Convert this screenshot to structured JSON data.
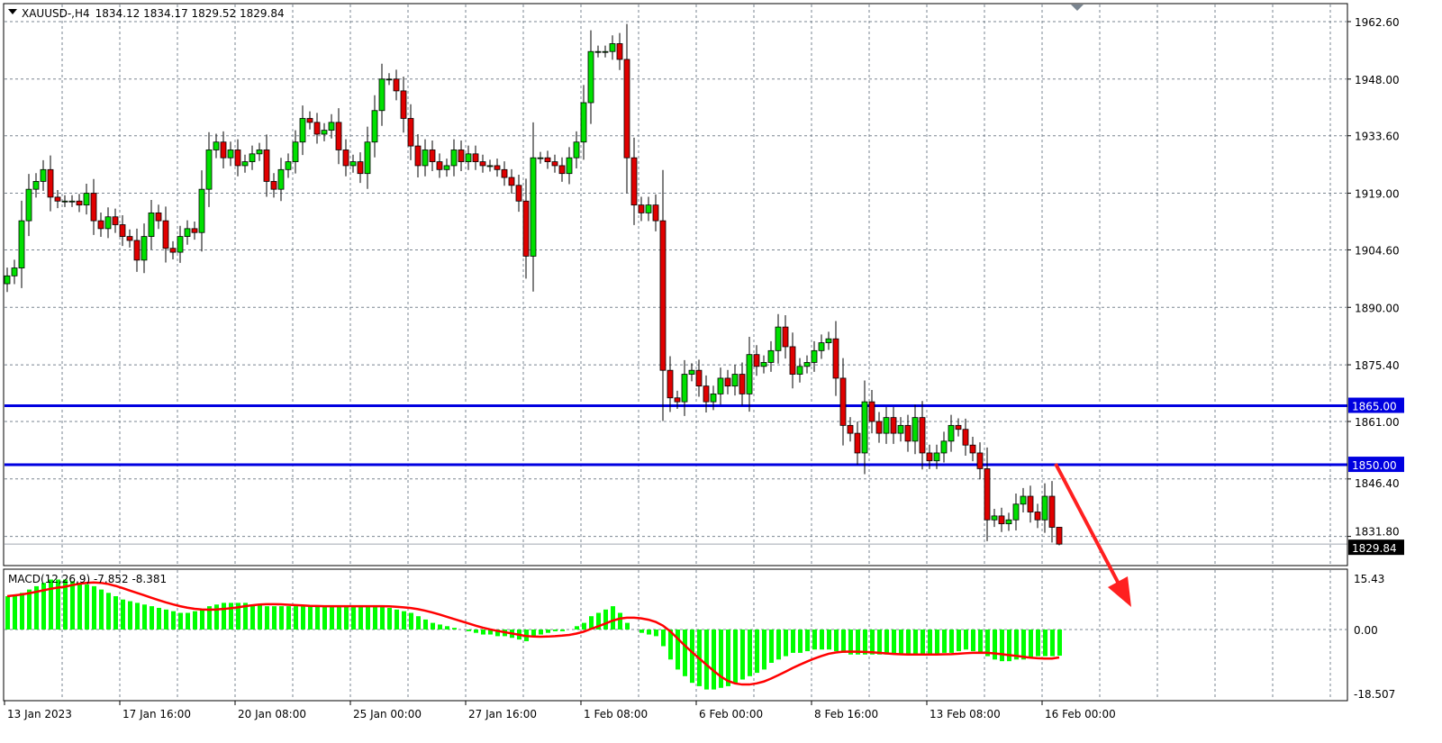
{
  "header": {
    "symbol": "XAUUSD-,H4",
    "ohlc_text": "1834.12 1834.17 1829.52 1829.84"
  },
  "colors": {
    "bull": "#00e000",
    "bear": "#e00000",
    "level_line": "#0000e0",
    "macd_hist": "#00ff00",
    "signal": "#ff0000",
    "grid": "#7a8590",
    "arrow": "#ff2020"
  },
  "chart_data": [
    {
      "type": "candlestick",
      "symbol": "XAUUSD-",
      "timeframe": "H4",
      "last_bar": {
        "open": 1834.12,
        "high": 1834.17,
        "low": 1829.52,
        "close": 1829.84
      },
      "close": [
        1898,
        1900,
        1912,
        1920,
        1922,
        1925,
        1918,
        1917,
        1917,
        1917,
        1916,
        1919,
        1912,
        1910,
        1913,
        1911,
        1908,
        1907,
        1902,
        1908,
        1914,
        1912,
        1905,
        1904,
        1908,
        1910,
        1909,
        1920,
        1930,
        1932,
        1928,
        1930,
        1926,
        1927,
        1929,
        1930,
        1922,
        1920,
        1925,
        1927,
        1932,
        1938,
        1937,
        1934,
        1935,
        1937,
        1930,
        1926,
        1927,
        1924,
        1932,
        1940,
        1948,
        1948,
        1945,
        1938,
        1931,
        1926,
        1930,
        1927,
        1925,
        1926,
        1930,
        1927,
        1929,
        1927,
        1926,
        1926,
        1925,
        1923,
        1921,
        1917,
        1903,
        1928,
        1928,
        1927,
        1926,
        1924,
        1928,
        1932,
        1942,
        1955,
        1955,
        1955,
        1957,
        1953,
        1928,
        1916,
        1914,
        1916,
        1912,
        1874,
        1867,
        1866,
        1873,
        1874,
        1870,
        1866,
        1868,
        1872,
        1870,
        1873,
        1868,
        1878,
        1875,
        1876,
        1879,
        1885,
        1880,
        1873,
        1875,
        1876,
        1879,
        1881,
        1882,
        1872,
        1860,
        1858,
        1853,
        1866,
        1861,
        1858,
        1862,
        1858,
        1860,
        1856,
        1862,
        1853,
        1851,
        1853,
        1856,
        1860,
        1859,
        1855,
        1853,
        1849,
        1836,
        1837,
        1835,
        1836,
        1840,
        1842,
        1838,
        1836,
        1842,
        1834.12,
        1829.84
      ],
      "y_ticks": [
        "1962.60",
        "1948.00",
        "1933.60",
        "1919.00",
        "1904.60",
        "1890.00",
        "1875.40",
        "1861.00",
        "1846.40",
        "1831.80"
      ],
      "ylim": [
        1825.5,
        1966.4
      ],
      "x_ticks": [
        "13 Jan 2023",
        "17 Jan 16:00",
        "20 Jan 08:00",
        "25 Jan 00:00",
        "27 Jan 16:00",
        "1 Feb 08:00",
        "6 Feb 00:00",
        "8 Feb 16:00",
        "13 Feb 08:00",
        "16 Feb 00:00"
      ],
      "horizontal_levels": [
        {
          "value": 1865.0,
          "label": "1865.00"
        },
        {
          "value": 1850.0,
          "label": "1850.00"
        }
      ],
      "current_price_label": "1829.84",
      "annotation": "red arrow pointing down-right from the 1850 level",
      "grid": true
    },
    {
      "type": "bar+line",
      "indicator_label": "MACD(12,26,9) -7.852 -8.381",
      "macd": [
        10,
        10.5,
        11,
        12,
        13,
        14,
        15,
        15,
        15,
        14.5,
        14,
        13.5,
        13,
        12,
        11,
        10,
        9,
        8.5,
        8,
        7.5,
        7,
        6.5,
        6,
        5.5,
        5,
        5,
        5.5,
        6,
        7,
        7.5,
        8,
        8,
        8,
        8,
        7.5,
        7.5,
        7,
        7,
        7,
        7,
        7,
        7,
        7,
        7,
        7,
        7,
        7,
        7,
        7,
        7,
        7,
        7,
        7,
        6.5,
        6,
        5.5,
        5,
        4,
        3,
        2,
        1.5,
        1,
        0.5,
        0,
        -0.5,
        -1,
        -1.5,
        -1.5,
        -2,
        -2,
        -2.5,
        -3,
        -3.5,
        -2,
        -1.5,
        -1,
        -0.5,
        -0.5,
        0,
        1,
        2,
        4,
        5,
        6,
        7,
        5,
        2,
        0,
        -1,
        -1.5,
        -2,
        -5,
        -9,
        -12,
        -14,
        -16,
        -17,
        -18,
        -18,
        -17.5,
        -17,
        -16,
        -15,
        -14,
        -13,
        -12,
        -10,
        -9,
        -8,
        -7,
        -7,
        -6.5,
        -6,
        -6,
        -6,
        -6.5,
        -7,
        -7.5,
        -7.5,
        -7.5,
        -7.5,
        -7.5,
        -7.5,
        -7.5,
        -7.5,
        -7.5,
        -7.5,
        -7.5,
        -7.5,
        -7.5,
        -7,
        -7,
        -6.5,
        -6,
        -6.5,
        -7,
        -8,
        -9,
        -9.5,
        -9.5,
        -9,
        -9,
        -8.5,
        -8,
        -8,
        -8,
        -7.852
      ],
      "signal_last": -8.381,
      "y_ticks": [
        "15.43",
        "0.00",
        "-18.507"
      ],
      "ylim": [
        -18.507,
        15.43
      ]
    }
  ]
}
